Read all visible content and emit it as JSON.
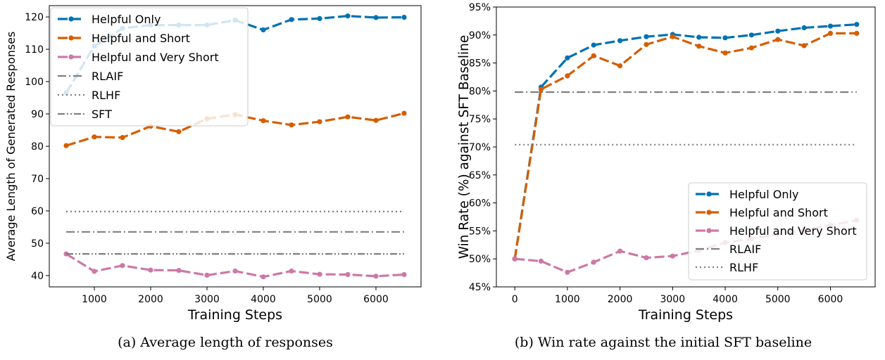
{
  "captions": {
    "a": "(a) Average length of responses",
    "b": "(b) Win rate against the initial SFT baseline"
  },
  "chart_data": [
    {
      "type": "line",
      "xlabel": "Training Steps",
      "ylabel": "Average Length of Generated Responses",
      "xlim": [
        200,
        6800
      ],
      "ylim": [
        36.5,
        123.5
      ],
      "xticks": [
        1000,
        2000,
        3000,
        4000,
        5000,
        6000
      ],
      "yticks": [
        40,
        50,
        60,
        70,
        80,
        90,
        100,
        110,
        120
      ],
      "ytick_suffix": "",
      "grid": false,
      "legend_position": "upper-left",
      "series": [
        {
          "name": "Helpful Only",
          "color": "#0072B2",
          "style": "dashed",
          "marker": true,
          "x": [
            500,
            1000,
            1500,
            2000,
            2500,
            3000,
            3500,
            4000,
            4500,
            5000,
            5500,
            6000,
            6500
          ],
          "y": [
            96.5,
            111.0,
            116.5,
            117.5,
            117.5,
            117.5,
            119.0,
            116.0,
            119.2,
            119.5,
            120.3,
            119.8,
            119.9
          ]
        },
        {
          "name": "Helpful and Short",
          "color": "#D55E00",
          "style": "dashed",
          "marker": true,
          "x": [
            500,
            1000,
            1500,
            2000,
            2500,
            3000,
            3500,
            4000,
            4500,
            5000,
            5500,
            6000,
            6500
          ],
          "y": [
            80.2,
            82.9,
            82.7,
            86.2,
            84.5,
            88.5,
            89.8,
            87.9,
            86.6,
            87.6,
            89.1,
            88.0,
            90.2
          ]
        },
        {
          "name": "Helpful and Very Short",
          "color": "#CC79A7",
          "style": "dashed",
          "marker": true,
          "x": [
            500,
            1000,
            1500,
            2000,
            2500,
            3000,
            3500,
            4000,
            4500,
            5000,
            5500,
            6000,
            6500
          ],
          "y": [
            46.7,
            41.3,
            43.1,
            41.7,
            41.6,
            40.1,
            41.4,
            39.6,
            41.4,
            40.4,
            40.3,
            39.8,
            40.3
          ]
        },
        {
          "name": "RLAIF",
          "color": "#7f7f7f",
          "style": "dashdot",
          "marker": false,
          "x": [
            500,
            6500
          ],
          "y": [
            53.5,
            53.5
          ]
        },
        {
          "name": "RLHF",
          "color": "#7f7f7f",
          "style": "dotted",
          "marker": false,
          "x": [
            500,
            6500
          ],
          "y": [
            59.8,
            59.8
          ]
        },
        {
          "name": "SFT",
          "color": "#7f7f7f",
          "style": "dashdotdot",
          "marker": false,
          "x": [
            500,
            6500
          ],
          "y": [
            46.7,
            46.7
          ]
        }
      ]
    },
    {
      "type": "line",
      "xlabel": "Training Steps",
      "ylabel": "Win Rate (%) against SFT Baseline",
      "xlim": [
        -350,
        6850
      ],
      "ylim": [
        45,
        95
      ],
      "xticks": [
        0,
        1000,
        2000,
        3000,
        4000,
        5000,
        6000
      ],
      "yticks": [
        45,
        50,
        55,
        60,
        65,
        70,
        75,
        80,
        85,
        90,
        95
      ],
      "ytick_suffix": "%",
      "grid": false,
      "legend_position": "lower-right",
      "series": [
        {
          "name": "Helpful Only",
          "color": "#0072B2",
          "style": "dashed",
          "marker": true,
          "x": [
            0,
            500,
            1000,
            1500,
            2000,
            2500,
            3000,
            3500,
            4000,
            4500,
            5000,
            5500,
            6000,
            6500
          ],
          "y": [
            50.0,
            80.7,
            85.9,
            88.2,
            89.0,
            89.7,
            90.1,
            89.6,
            89.5,
            90.0,
            90.7,
            91.3,
            91.6,
            91.9
          ]
        },
        {
          "name": "Helpful and Short",
          "color": "#D55E00",
          "style": "dashed",
          "marker": true,
          "x": [
            0,
            500,
            1000,
            1500,
            2000,
            2500,
            3000,
            3500,
            4000,
            4500,
            5000,
            5500,
            6000,
            6500
          ],
          "y": [
            50.0,
            80.3,
            82.7,
            86.3,
            84.5,
            88.3,
            89.7,
            88.0,
            86.8,
            87.7,
            89.2,
            88.1,
            90.3,
            90.3
          ]
        },
        {
          "name": "Helpful and Very Short",
          "color": "#CC79A7",
          "style": "dashed",
          "marker": true,
          "x": [
            0,
            500,
            1000,
            1500,
            2000,
            2500,
            3000,
            3500,
            4000,
            4500,
            5000,
            5500,
            6000,
            6500
          ],
          "y": [
            50.0,
            49.6,
            47.6,
            49.4,
            51.4,
            50.2,
            50.5,
            51.5,
            52.9,
            53.6,
            54.4,
            55.2,
            56.0,
            56.9
          ]
        },
        {
          "name": "RLAIF",
          "color": "#7f7f7f",
          "style": "dashdot",
          "marker": false,
          "x": [
            0,
            6500
          ],
          "y": [
            79.8,
            79.8
          ]
        },
        {
          "name": "RLHF",
          "color": "#7f7f7f",
          "style": "dotted",
          "marker": false,
          "x": [
            0,
            6500
          ],
          "y": [
            70.4,
            70.4
          ]
        }
      ]
    }
  ]
}
